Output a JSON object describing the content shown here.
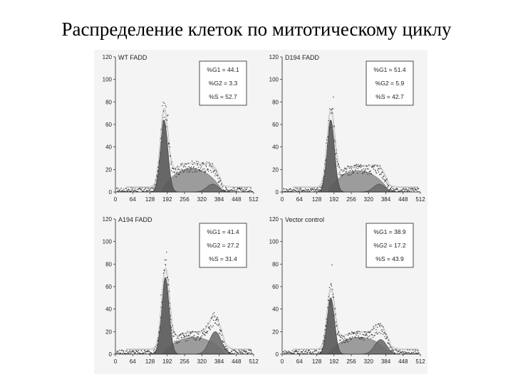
{
  "slide": {
    "title": "Распределение клеток по митотическому циклу"
  },
  "colors": {
    "g1": "#5a5a5a",
    "s": "#9c9c9c",
    "g2": "#6e6e6e",
    "envelope": "#ffffff",
    "points": "#333333",
    "axis": "#222222",
    "background": "#f4f4f4"
  },
  "chart_data": [
    {
      "type": "area",
      "title": "WT FADD",
      "xticks": [
        0,
        64,
        128,
        192,
        256,
        320,
        384,
        448,
        512
      ],
      "yticks": [
        0,
        20,
        40,
        60,
        80,
        100,
        120
      ],
      "xlim": [
        0,
        512
      ],
      "ylim": [
        0,
        120
      ],
      "stats": [
        "%G1 = 44.1",
        "%G2 = 3.3",
        "%S = 52.7"
      ],
      "values": {
        "G1": 44.1,
        "G2": 3.3,
        "S": 52.7
      },
      "peaks": {
        "g1_x": 180,
        "g1_y": 64,
        "g2_x": 360,
        "g2_y": 7,
        "s_y": 21,
        "total_peak_y": 80
      }
    },
    {
      "type": "area",
      "title": "D194 FADD",
      "xticks": [
        0,
        64,
        128,
        192,
        256,
        320,
        384,
        448,
        512
      ],
      "yticks": [
        0,
        20,
        40,
        60,
        80,
        100,
        120
      ],
      "xlim": [
        0,
        512
      ],
      "ylim": [
        0,
        120
      ],
      "stats": [
        "%G1 = 51.4",
        "%G2 = 5.9",
        "%S = 42.7"
      ],
      "values": {
        "G1": 51.4,
        "G2": 5.9,
        "S": 42.7
      },
      "peaks": {
        "g1_x": 180,
        "g1_y": 64,
        "g2_x": 360,
        "g2_y": 7,
        "s_y": 19,
        "total_peak_y": 80
      }
    },
    {
      "type": "area",
      "title": "A194 FADD",
      "xticks": [
        0,
        64,
        128,
        192,
        256,
        320,
        384,
        448,
        512
      ],
      "yticks": [
        0,
        20,
        40,
        60,
        80,
        100,
        120
      ],
      "xlim": [
        0,
        512
      ],
      "ylim": [
        0,
        120
      ],
      "stats": [
        "%G1 = 41.4",
        "%G2 = 27.2",
        "%S = 31.4"
      ],
      "values": {
        "G1": 41.4,
        "G2": 27.2,
        "S": 31.4
      },
      "peaks": {
        "g1_x": 185,
        "g1_y": 68,
        "g2_x": 370,
        "g2_y": 20,
        "s_y": 15,
        "total_peak_y": 80
      }
    },
    {
      "type": "area",
      "title": "Vector control",
      "xticks": [
        0,
        64,
        128,
        192,
        256,
        320,
        384,
        448,
        512
      ],
      "yticks": [
        0,
        20,
        40,
        60,
        80,
        100,
        120
      ],
      "xlim": [
        0,
        512
      ],
      "ylim": [
        0,
        120
      ],
      "stats": [
        "%G1 = 38.9",
        "%G2 = 17.2",
        "%S = 43.9"
      ],
      "values": {
        "G1": 38.9,
        "G2": 17.2,
        "S": 43.9
      },
      "peaks": {
        "g1_x": 180,
        "g1_y": 50,
        "g2_x": 365,
        "g2_y": 13,
        "s_y": 15,
        "total_peak_y": 65
      }
    }
  ]
}
